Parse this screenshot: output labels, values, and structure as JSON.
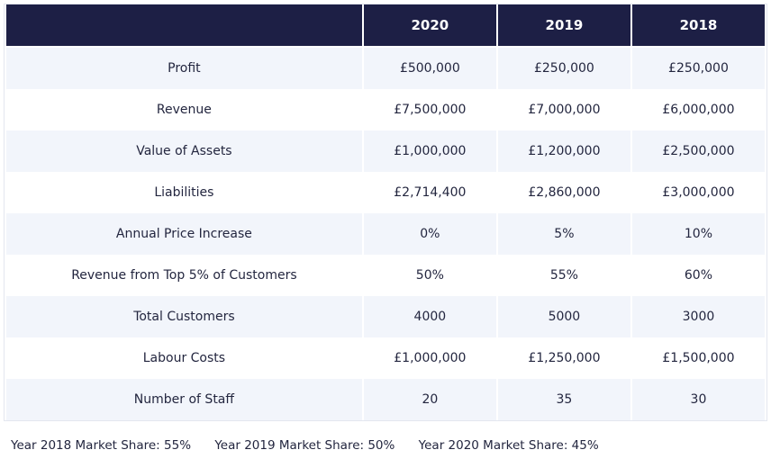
{
  "table": {
    "header": {
      "label": "",
      "years": [
        "2020",
        "2019",
        "2018"
      ]
    },
    "rows": [
      {
        "label": "Profit",
        "values": [
          "£500,000",
          "£250,000",
          "£250,000"
        ]
      },
      {
        "label": "Revenue",
        "values": [
          "£7,500,000",
          "£7,000,000",
          "£6,000,000"
        ]
      },
      {
        "label": "Value of Assets",
        "values": [
          "£1,000,000",
          "£1,200,000",
          "£2,500,000"
        ]
      },
      {
        "label": "Liabilities",
        "values": [
          "£2,714,400",
          "£2,860,000",
          "£3,000,000"
        ]
      },
      {
        "label": "Annual Price Increase",
        "values": [
          "0%",
          "5%",
          "10%"
        ]
      },
      {
        "label": "Revenue from Top 5% of Customers",
        "values": [
          "50%",
          "55%",
          "60%"
        ]
      },
      {
        "label": "Total Customers",
        "values": [
          "4000",
          "5000",
          "3000"
        ]
      },
      {
        "label": "Labour Costs",
        "values": [
          "£1,000,000",
          "£1,250,000",
          "£1,500,000"
        ]
      },
      {
        "label": "Number of Staff",
        "values": [
          "20",
          "35",
          "30"
        ]
      }
    ]
  },
  "footer": {
    "items": [
      "Year 2018 Market Share: 55%",
      "Year 2019 Market Share: 50%",
      "Year 2020 Market Share: 45%"
    ]
  },
  "colors": {
    "header_bg": "#1d1f45",
    "stripe_bg": "#f2f5fb"
  }
}
